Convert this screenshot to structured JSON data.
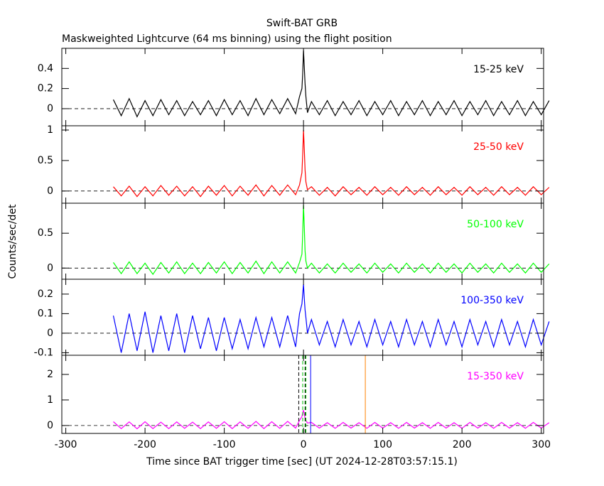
{
  "title": "Swift-BAT GRB",
  "subtitle": "Maskweighted Lightcurve (64 ms binning) using the flight position",
  "x_label": "Time since BAT trigger time [sec] (UT 2024-12-28T03:57:15.1)",
  "y_label": "Counts/sec/det",
  "chart_data": [
    {
      "type": "line",
      "label": "15-25 keV",
      "color": "#000000",
      "xlim": [
        -305,
        303
      ],
      "xticks": [
        -300,
        -200,
        -100,
        0,
        100,
        200,
        300
      ],
      "ylim": [
        -0.17,
        0.6
      ],
      "yticks": [
        0,
        0.2,
        0.4
      ],
      "x": [
        -240,
        -230,
        -220,
        -210,
        -200,
        -190,
        -180,
        -170,
        -160,
        -150,
        -140,
        -130,
        -120,
        -110,
        -100,
        -90,
        -80,
        -70,
        -60,
        -50,
        -40,
        -30,
        -20,
        -10,
        -5,
        -2,
        -1,
        0,
        1,
        2,
        3,
        5,
        10,
        20,
        30,
        40,
        50,
        60,
        70,
        80,
        90,
        100,
        110,
        120,
        130,
        140,
        150,
        160,
        170,
        180,
        190,
        200,
        210,
        220,
        230,
        240,
        250,
        260,
        270,
        280,
        290,
        300,
        310
      ],
      "values": [
        0.09,
        -0.07,
        0.1,
        -0.08,
        0.08,
        -0.07,
        0.09,
        -0.06,
        0.08,
        -0.07,
        0.07,
        -0.06,
        0.08,
        -0.07,
        0.09,
        -0.06,
        0.08,
        -0.07,
        0.1,
        -0.06,
        0.09,
        -0.05,
        0.1,
        -0.05,
        0.12,
        0.2,
        0.35,
        0.58,
        0.42,
        0.25,
        0.12,
        -0.04,
        0.07,
        -0.06,
        0.08,
        -0.07,
        0.07,
        -0.06,
        0.08,
        -0.07,
        0.07,
        -0.06,
        0.08,
        -0.07,
        0.07,
        -0.06,
        0.08,
        -0.07,
        0.07,
        -0.06,
        0.08,
        -0.07,
        0.07,
        -0.06,
        0.08,
        -0.07,
        0.07,
        -0.06,
        0.08,
        -0.07,
        0.07,
        -0.06,
        0.08
      ]
    },
    {
      "type": "line",
      "label": "25-50 keV",
      "color": "#ff0000",
      "xlim": [
        -305,
        303
      ],
      "xticks": [
        -300,
        -200,
        -100,
        0,
        100,
        200,
        300
      ],
      "ylim": [
        -0.2,
        1.07
      ],
      "yticks": [
        0,
        0.5,
        1
      ],
      "x": [
        -240,
        -230,
        -220,
        -210,
        -200,
        -190,
        -180,
        -170,
        -160,
        -150,
        -140,
        -130,
        -120,
        -110,
        -100,
        -90,
        -80,
        -70,
        -60,
        -50,
        -40,
        -30,
        -20,
        -10,
        -5,
        -2,
        -1,
        0,
        1,
        2,
        3,
        5,
        10,
        20,
        30,
        40,
        50,
        60,
        70,
        80,
        90,
        100,
        110,
        120,
        130,
        140,
        150,
        160,
        170,
        180,
        190,
        200,
        210,
        220,
        230,
        240,
        250,
        260,
        270,
        280,
        290,
        300,
        310
      ],
      "values": [
        0.07,
        -0.08,
        0.08,
        -0.09,
        0.07,
        -0.08,
        0.09,
        -0.07,
        0.08,
        -0.08,
        0.07,
        -0.09,
        0.08,
        -0.07,
        0.09,
        -0.08,
        0.08,
        -0.07,
        0.1,
        -0.08,
        0.09,
        -0.07,
        0.1,
        -0.06,
        0.1,
        0.3,
        0.6,
        1.0,
        0.7,
        0.35,
        0.15,
        0.02,
        0.07,
        -0.07,
        0.06,
        -0.08,
        0.07,
        -0.06,
        0.06,
        -0.07,
        0.07,
        -0.06,
        0.06,
        -0.07,
        0.07,
        -0.06,
        0.06,
        -0.07,
        0.07,
        -0.06,
        0.06,
        -0.07,
        0.07,
        -0.06,
        0.06,
        -0.07,
        0.07,
        -0.06,
        0.06,
        -0.07,
        0.07,
        -0.06,
        0.06
      ]
    },
    {
      "type": "line",
      "label": "50-100 keV",
      "color": "#00ff00",
      "xlim": [
        -305,
        303
      ],
      "xticks": [
        -300,
        -200,
        -100,
        0,
        100,
        200,
        300
      ],
      "ylim": [
        -0.16,
        0.93
      ],
      "yticks": [
        0,
        0.5
      ],
      "x": [
        -240,
        -230,
        -220,
        -210,
        -200,
        -190,
        -180,
        -170,
        -160,
        -150,
        -140,
        -130,
        -120,
        -110,
        -100,
        -90,
        -80,
        -70,
        -60,
        -50,
        -40,
        -30,
        -20,
        -10,
        -5,
        -2,
        -1,
        0,
        1,
        2,
        3,
        5,
        10,
        20,
        30,
        40,
        50,
        60,
        70,
        80,
        90,
        100,
        110,
        120,
        130,
        140,
        150,
        160,
        170,
        180,
        190,
        200,
        210,
        220,
        230,
        240,
        250,
        260,
        270,
        280,
        290,
        300,
        310
      ],
      "values": [
        0.08,
        -0.08,
        0.09,
        -0.08,
        0.07,
        -0.09,
        0.08,
        -0.07,
        0.09,
        -0.08,
        0.07,
        -0.08,
        0.08,
        -0.07,
        0.09,
        -0.08,
        0.08,
        -0.07,
        0.1,
        -0.08,
        0.09,
        -0.07,
        0.09,
        -0.07,
        0.08,
        0.2,
        0.5,
        0.9,
        0.6,
        0.25,
        0.1,
        0.0,
        0.07,
        -0.07,
        0.06,
        -0.07,
        0.07,
        -0.06,
        0.06,
        -0.07,
        0.07,
        -0.06,
        0.06,
        -0.07,
        0.07,
        -0.06,
        0.06,
        -0.07,
        0.07,
        -0.06,
        0.06,
        -0.07,
        0.07,
        -0.06,
        0.06,
        -0.07,
        0.07,
        -0.06,
        0.06,
        -0.07,
        0.07,
        -0.06,
        0.06
      ]
    },
    {
      "type": "line",
      "label": "100-350 keV",
      "color": "#0000ff",
      "xlim": [
        -305,
        303
      ],
      "xticks": [
        -300,
        -200,
        -100,
        0,
        100,
        200,
        300
      ],
      "ylim": [
        -0.113,
        0.276
      ],
      "yticks": [
        -0.1,
        0,
        0.1,
        0.2
      ],
      "x": [
        -240,
        -230,
        -220,
        -210,
        -200,
        -190,
        -180,
        -170,
        -160,
        -150,
        -140,
        -130,
        -120,
        -110,
        -100,
        -90,
        -80,
        -70,
        -60,
        -50,
        -40,
        -30,
        -20,
        -10,
        -5,
        -2,
        -1,
        0,
        1,
        2,
        3,
        5,
        10,
        20,
        30,
        40,
        50,
        60,
        70,
        80,
        90,
        100,
        110,
        120,
        130,
        140,
        150,
        160,
        170,
        180,
        190,
        200,
        210,
        220,
        230,
        240,
        250,
        260,
        270,
        280,
        290,
        300,
        310
      ],
      "values": [
        0.09,
        -0.1,
        0.1,
        -0.09,
        0.11,
        -0.1,
        0.09,
        -0.09,
        0.1,
        -0.1,
        0.09,
        -0.08,
        0.08,
        -0.09,
        0.08,
        -0.08,
        0.07,
        -0.08,
        0.08,
        -0.07,
        0.08,
        -0.07,
        0.09,
        -0.07,
        0.1,
        0.15,
        0.2,
        0.25,
        0.18,
        0.12,
        0.08,
        0.0,
        0.07,
        -0.06,
        0.06,
        -0.07,
        0.07,
        -0.06,
        0.06,
        -0.07,
        0.07,
        -0.06,
        0.06,
        -0.07,
        0.07,
        -0.06,
        0.06,
        -0.07,
        0.07,
        -0.06,
        0.06,
        -0.07,
        0.07,
        -0.06,
        0.06,
        -0.07,
        0.07,
        -0.06,
        0.06,
        -0.07,
        0.07,
        -0.06,
        0.06
      ]
    },
    {
      "type": "line",
      "label": "15-350 keV",
      "color": "#ff00ff",
      "xlim": [
        -305,
        303
      ],
      "xticks": [
        -300,
        -200,
        -100,
        0,
        100,
        200,
        300
      ],
      "ylim": [
        -0.31,
        2.75
      ],
      "yticks": [
        0,
        1,
        2
      ],
      "x": [
        -240,
        -230,
        -220,
        -210,
        -200,
        -190,
        -180,
        -170,
        -160,
        -150,
        -140,
        -130,
        -120,
        -110,
        -100,
        -90,
        -80,
        -70,
        -60,
        -50,
        -40,
        -30,
        -20,
        -10,
        -5,
        -2,
        -1,
        0,
        1,
        2,
        3,
        5,
        10,
        20,
        30,
        40,
        50,
        60,
        70,
        80,
        90,
        100,
        110,
        120,
        130,
        140,
        150,
        160,
        170,
        180,
        190,
        200,
        210,
        220,
        230,
        240,
        250,
        260,
        270,
        280,
        290,
        300,
        310
      ],
      "values": [
        0.15,
        -0.12,
        0.14,
        -0.13,
        0.15,
        -0.12,
        0.13,
        -0.12,
        0.14,
        -0.11,
        0.13,
        -0.12,
        0.14,
        -0.11,
        0.15,
        -0.12,
        0.14,
        -0.11,
        0.16,
        -0.12,
        0.15,
        -0.11,
        0.16,
        -0.1,
        0.2,
        0.35,
        0.5,
        0.6,
        0.45,
        0.3,
        0.2,
        0.1,
        0.12,
        -0.1,
        0.11,
        -0.11,
        0.12,
        -0.1,
        0.11,
        -0.11,
        0.12,
        -0.1,
        0.11,
        -0.11,
        0.12,
        -0.1,
        0.11,
        -0.11,
        0.12,
        -0.1,
        0.11,
        -0.11,
        0.12,
        -0.1,
        0.11,
        -0.11,
        0.12,
        -0.1,
        0.11,
        -0.11,
        0.12,
        -0.1,
        0.11
      ],
      "vlines": [
        {
          "x": -6,
          "color": "#000000",
          "dashed": true
        },
        {
          "x": -1,
          "color": "#00c000",
          "dashed": true
        },
        {
          "x": 2,
          "color": "#000000",
          "dashed": true
        },
        {
          "x": 3,
          "color": "#00c000",
          "dashed": true
        },
        {
          "x": 9,
          "color": "#0000ff",
          "dashed": false
        },
        {
          "x": 78,
          "color": "#ff8000",
          "dashed": false
        }
      ]
    }
  ]
}
